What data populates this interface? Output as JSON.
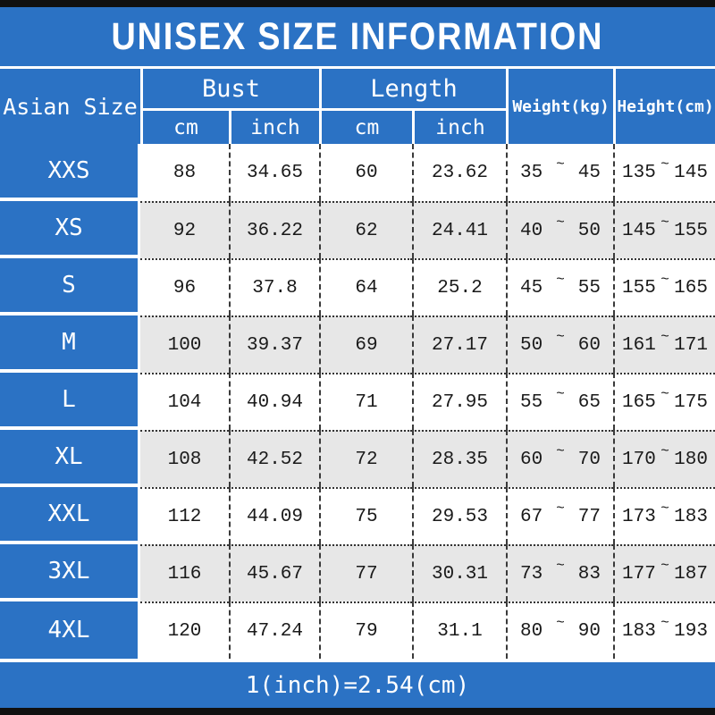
{
  "title": "UNISEX SIZE INFORMATION",
  "footer": "1(inch)=2.54(cm)",
  "colors": {
    "background_blue": "#2b72c4",
    "alt_row_gray": "#e7e7e7",
    "edge_bar_black": "#101010",
    "text_white": "#ffffff",
    "text_dark": "#1a1a1a"
  },
  "table": {
    "tilde": "~",
    "columns": {
      "asian_size": "Asian Size",
      "bust": "Bust",
      "length": "Length",
      "cm": "cm",
      "inch": "inch",
      "weight": "Weight(kg)",
      "height": "Height(cm)"
    },
    "rows": [
      {
        "size": "XXS",
        "bust_cm": "88",
        "bust_inch": "34.65",
        "length_cm": "60",
        "length_inch": "23.62",
        "weight": [
          "35",
          "45"
        ],
        "height": [
          "135",
          "145"
        ]
      },
      {
        "size": "XS",
        "bust_cm": "92",
        "bust_inch": "36.22",
        "length_cm": "62",
        "length_inch": "24.41",
        "weight": [
          "40",
          "50"
        ],
        "height": [
          "145",
          "155"
        ]
      },
      {
        "size": "S",
        "bust_cm": "96",
        "bust_inch": "37.8",
        "length_cm": "64",
        "length_inch": "25.2",
        "weight": [
          "45",
          "55"
        ],
        "height": [
          "155",
          "165"
        ]
      },
      {
        "size": "M",
        "bust_cm": "100",
        "bust_inch": "39.37",
        "length_cm": "69",
        "length_inch": "27.17",
        "weight": [
          "50",
          "60"
        ],
        "height": [
          "161",
          "171"
        ]
      },
      {
        "size": "L",
        "bust_cm": "104",
        "bust_inch": "40.94",
        "length_cm": "71",
        "length_inch": "27.95",
        "weight": [
          "55",
          "65"
        ],
        "height": [
          "165",
          "175"
        ]
      },
      {
        "size": "XL",
        "bust_cm": "108",
        "bust_inch": "42.52",
        "length_cm": "72",
        "length_inch": "28.35",
        "weight": [
          "60",
          "70"
        ],
        "height": [
          "170",
          "180"
        ]
      },
      {
        "size": "XXL",
        "bust_cm": "112",
        "bust_inch": "44.09",
        "length_cm": "75",
        "length_inch": "29.53",
        "weight": [
          "67",
          "77"
        ],
        "height": [
          "173",
          "183"
        ]
      },
      {
        "size": "3XL",
        "bust_cm": "116",
        "bust_inch": "45.67",
        "length_cm": "77",
        "length_inch": "30.31",
        "weight": [
          "73",
          "83"
        ],
        "height": [
          "177",
          "187"
        ]
      },
      {
        "size": "4XL",
        "bust_cm": "120",
        "bust_inch": "47.24",
        "length_cm": "79",
        "length_inch": "31.1",
        "weight": [
          "80",
          "90"
        ],
        "height": [
          "183",
          "193"
        ]
      }
    ]
  }
}
